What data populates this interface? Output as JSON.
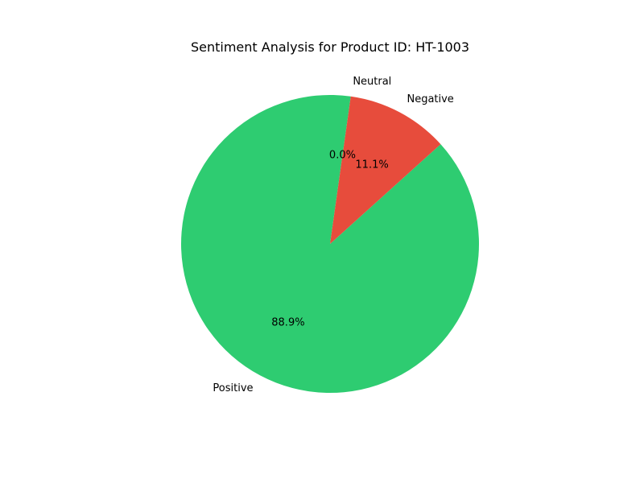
{
  "chart_data": {
    "type": "pie",
    "title": "Sentiment Analysis for Product ID: HT-1003",
    "categories": [
      "Positive",
      "Negative",
      "Neutral"
    ],
    "values": [
      88.9,
      11.1,
      0.0
    ],
    "percent_labels": [
      "88.9%",
      "11.1%",
      "0.0%"
    ],
    "colors": [
      "#2ecc71",
      "#e74c3c",
      "#95a5a6"
    ],
    "start_angle_deg": 82,
    "direction": "counterclockwise",
    "legend": "none"
  }
}
